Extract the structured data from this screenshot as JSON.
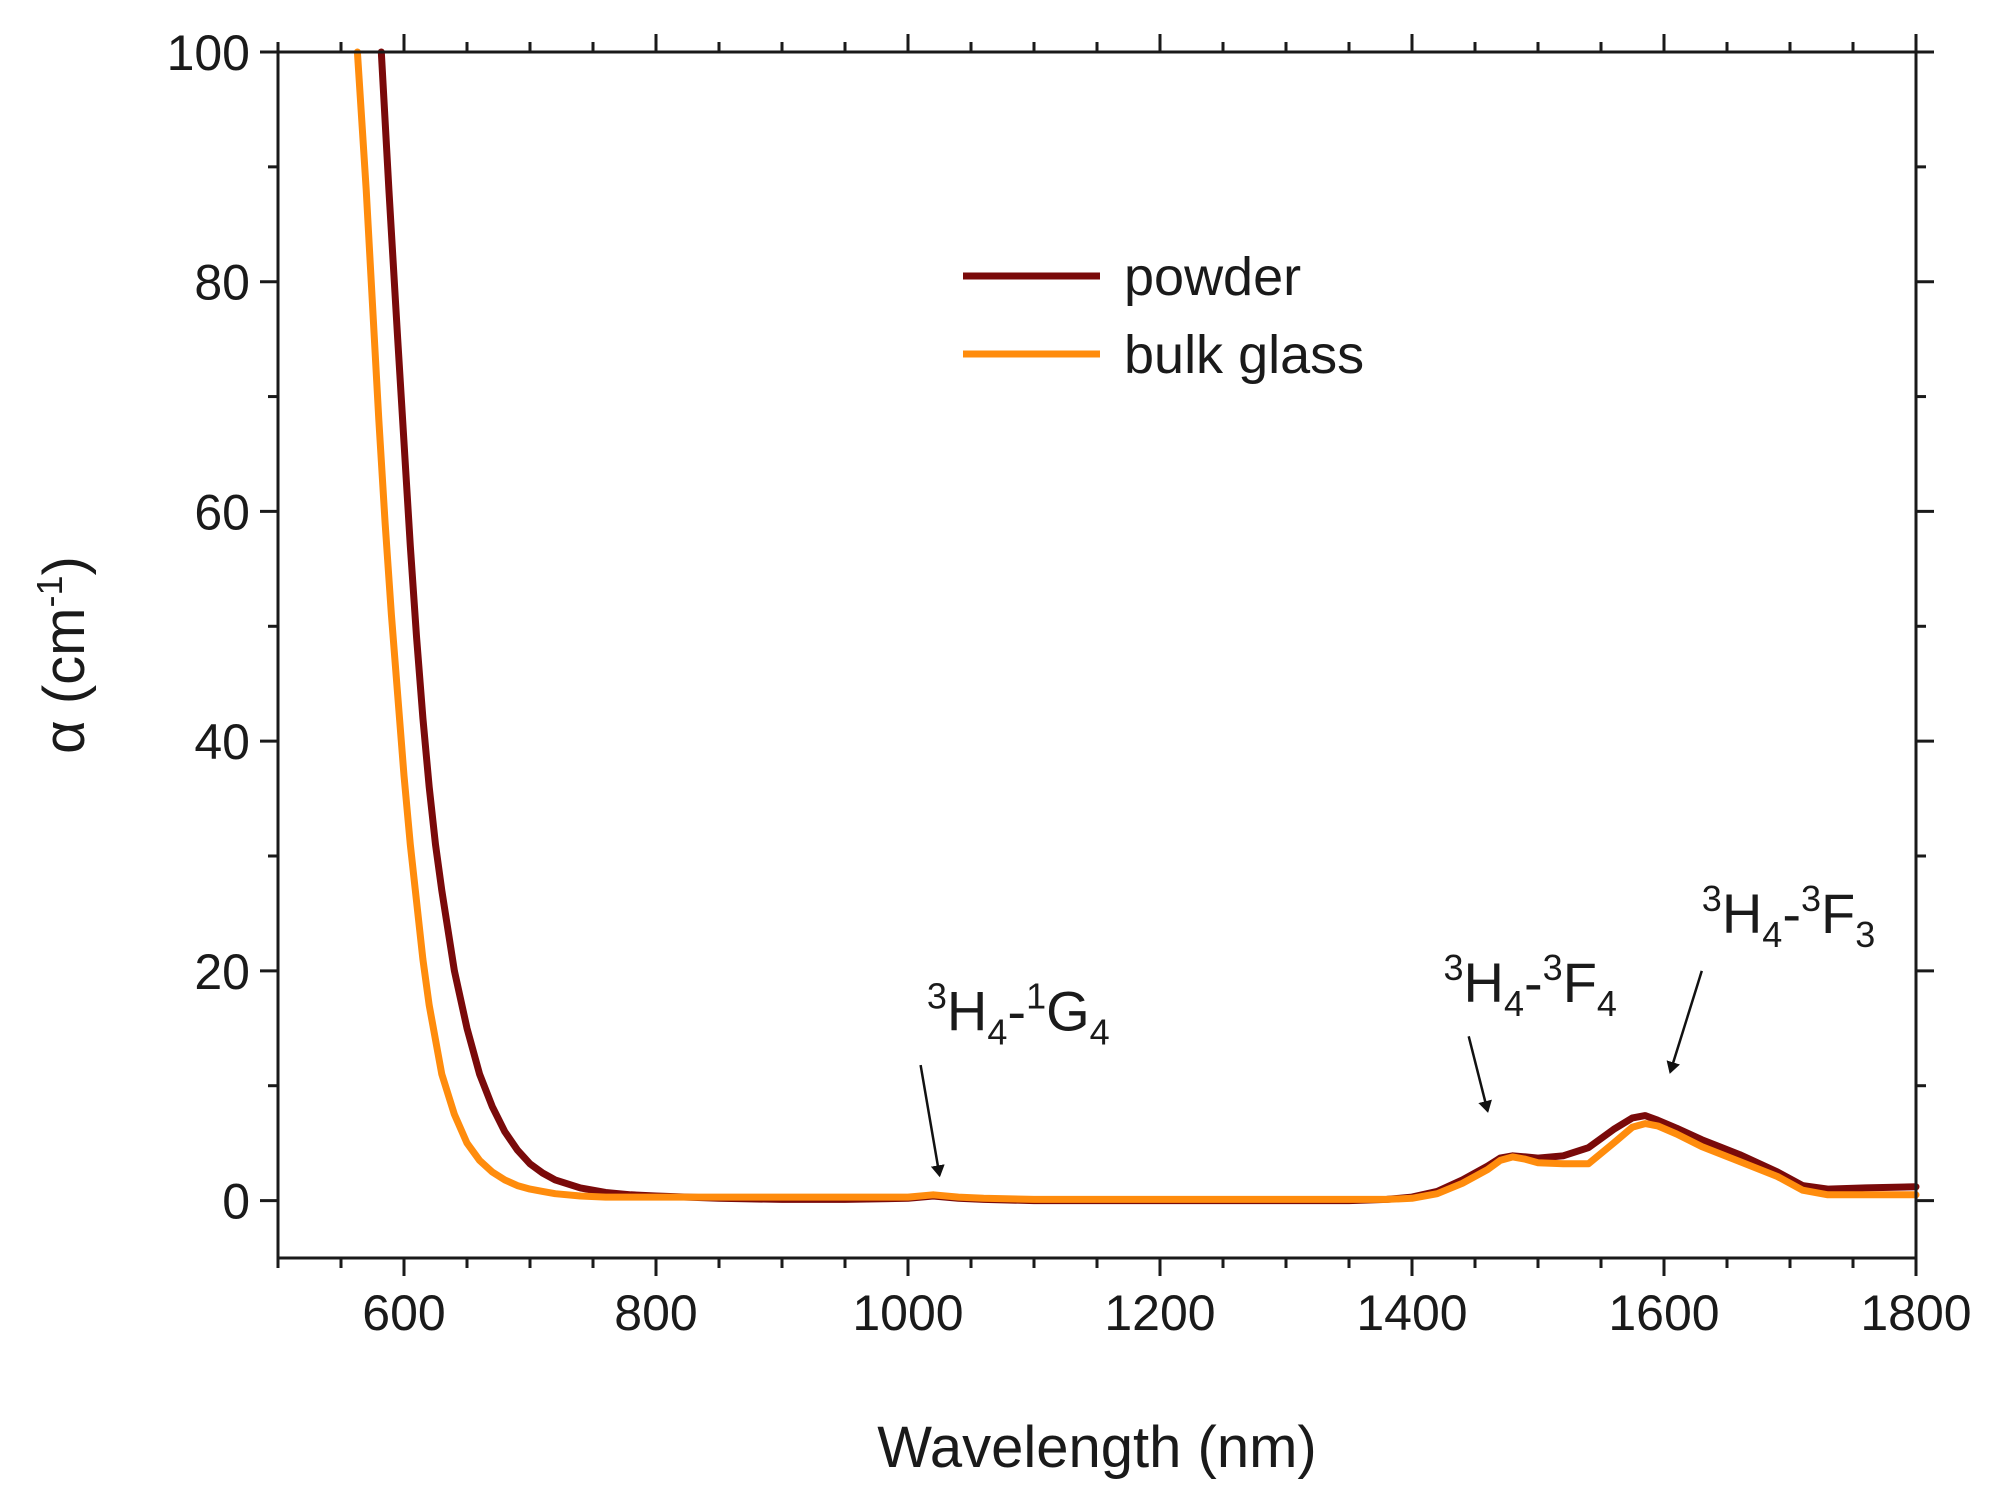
{
  "chart_data": {
    "type": "line",
    "title": "",
    "xlabel": "Wavelength (nm)",
    "ylabel": "α (cm",
    "ylabel_exponent": "-1",
    "ylabel_close": ")",
    "xlim": [
      500,
      1800
    ],
    "ylim": [
      -5,
      100
    ],
    "x_ticks": [
      600,
      800,
      1000,
      1200,
      1400,
      1600,
      1800
    ],
    "y_ticks": [
      0,
      20,
      40,
      60,
      80,
      100
    ],
    "grid": false,
    "legend_position": "top-center",
    "series": [
      {
        "name": "powder",
        "color": "#7a0a0a",
        "x": [
          582,
          588,
          595,
          600,
          605,
          610,
          615,
          620,
          625,
          630,
          640,
          650,
          660,
          670,
          680,
          690,
          700,
          710,
          720,
          740,
          760,
          780,
          800,
          850,
          900,
          950,
          1000,
          1020,
          1040,
          1060,
          1100,
          1200,
          1300,
          1350,
          1380,
          1400,
          1420,
          1440,
          1460,
          1470,
          1480,
          1490,
          1500,
          1520,
          1540,
          1560,
          1575,
          1585,
          1595,
          1610,
          1630,
          1660,
          1690,
          1710,
          1730,
          1760,
          1800
        ],
        "y": [
          100,
          88,
          75,
          66,
          57,
          49,
          42,
          36,
          31,
          27,
          20,
          15,
          11,
          8.2,
          6.0,
          4.4,
          3.2,
          2.4,
          1.8,
          1.1,
          0.7,
          0.5,
          0.4,
          0.2,
          0.1,
          0.1,
          0.2,
          0.4,
          0.2,
          0.1,
          0.0,
          0.0,
          0.0,
          0.0,
          0.1,
          0.3,
          0.8,
          1.8,
          3.0,
          3.7,
          3.9,
          3.8,
          3.7,
          3.9,
          4.6,
          6.2,
          7.2,
          7.4,
          7.0,
          6.3,
          5.3,
          4.0,
          2.5,
          1.3,
          1.0,
          1.1,
          1.2
        ]
      },
      {
        "name": "bulk glass",
        "color": "#ff8c0d",
        "x": [
          563,
          570,
          575,
          580,
          585,
          590,
          595,
          600,
          605,
          610,
          615,
          620,
          630,
          640,
          650,
          660,
          670,
          680,
          690,
          700,
          710,
          720,
          740,
          760,
          780,
          800,
          850,
          900,
          950,
          1000,
          1020,
          1040,
          1060,
          1100,
          1200,
          1300,
          1350,
          1380,
          1400,
          1420,
          1440,
          1460,
          1470,
          1480,
          1490,
          1500,
          1520,
          1540,
          1560,
          1575,
          1585,
          1595,
          1610,
          1630,
          1660,
          1690,
          1710,
          1730,
          1760,
          1800
        ],
        "y": [
          100,
          88,
          78,
          68,
          59,
          51,
          44,
          37,
          31,
          26,
          21,
          17,
          11,
          7.5,
          5.0,
          3.5,
          2.5,
          1.8,
          1.3,
          1.0,
          0.8,
          0.6,
          0.4,
          0.3,
          0.3,
          0.3,
          0.3,
          0.3,
          0.3,
          0.3,
          0.5,
          0.3,
          0.2,
          0.1,
          0.1,
          0.1,
          0.1,
          0.1,
          0.2,
          0.6,
          1.5,
          2.7,
          3.5,
          3.8,
          3.6,
          3.3,
          3.2,
          3.2,
          5.0,
          6.4,
          6.7,
          6.5,
          5.8,
          4.7,
          3.4,
          2.1,
          0.9,
          0.5,
          0.5,
          0.5
        ]
      }
    ],
    "annotations": [
      {
        "id": "g4",
        "base": "H",
        "pre": "3",
        "sub1": "4",
        "mid": "-",
        "pre2": "1",
        "base2": "G",
        "sub2": "4",
        "text_x": 1015,
        "text_y": 14.8,
        "arrow_from": [
          1010,
          11.8
        ],
        "arrow_to": [
          1025,
          2.2
        ]
      },
      {
        "id": "f4",
        "base": "H",
        "pre": "3",
        "sub1": "4",
        "mid": "-",
        "pre2": "3",
        "base2": "F",
        "sub2": "4",
        "text_x": 1425,
        "text_y": 17.3,
        "arrow_from": [
          1445,
          14.3
        ],
        "arrow_to": [
          1460,
          7.8
        ]
      },
      {
        "id": "f3",
        "base": "H",
        "pre": "3",
        "sub1": "4",
        "mid": "-",
        "pre2": "3",
        "base2": "F",
        "sub2": "3",
        "text_x": 1630,
        "text_y": 23.3,
        "arrow_from": [
          1630,
          20.0
        ],
        "arrow_to": [
          1605,
          11.2
        ]
      }
    ]
  }
}
